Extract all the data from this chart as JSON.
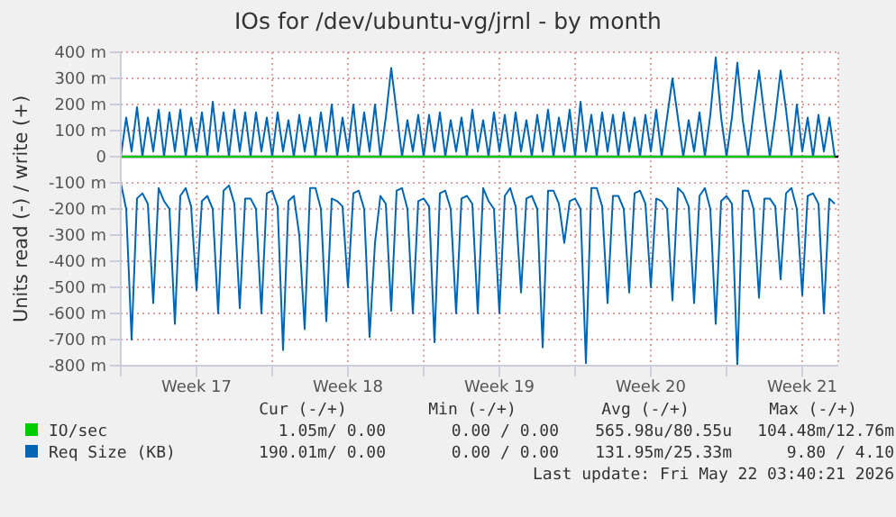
{
  "chart_data": {
    "type": "line",
    "title": "IOs for /dev/ubuntu-vg/jrnl - by month",
    "ylabel": "Units read (-) / write (+)",
    "x": [
      "2026-04-19T00:00",
      "2026-04-19T06:00",
      "2026-04-19T12:00",
      "2026-04-19T18:00",
      "2026-04-20T00:00",
      "2026-04-20T06:00",
      "2026-04-20T12:00",
      "2026-04-20T18:00",
      "2026-04-21T00:00",
      "2026-04-21T06:00",
      "2026-04-21T12:00",
      "2026-04-21T18:00",
      "2026-04-22T00:00",
      "2026-04-22T06:00",
      "2026-04-22T12:00",
      "2026-04-22T18:00",
      "2026-04-23T00:00",
      "2026-04-23T06:00",
      "2026-04-23T12:00",
      "2026-04-23T18:00",
      "2026-04-24T00:00",
      "2026-04-24T06:00",
      "2026-04-24T12:00",
      "2026-04-24T18:00",
      "2026-04-25T00:00",
      "2026-04-25T06:00",
      "2026-04-25T12:00",
      "2026-04-25T18:00",
      "2026-04-26T00:00",
      "2026-04-26T06:00",
      "2026-04-26T12:00",
      "2026-04-26T18:00",
      "2026-04-27T00:00",
      "2026-04-27T06:00",
      "2026-04-27T12:00",
      "2026-04-27T18:00",
      "2026-04-28T00:00",
      "2026-04-28T06:00",
      "2026-04-28T12:00",
      "2026-04-28T18:00",
      "2026-04-29T00:00",
      "2026-04-29T06:00",
      "2026-04-29T12:00",
      "2026-04-29T18:00",
      "2026-04-30T00:00",
      "2026-04-30T06:00",
      "2026-04-30T12:00",
      "2026-04-30T18:00",
      "2026-05-01T00:00",
      "2026-05-01T06:00",
      "2026-05-01T12:00",
      "2026-05-01T18:00",
      "2026-05-02T00:00",
      "2026-05-02T06:00",
      "2026-05-02T12:00",
      "2026-05-02T18:00",
      "2026-05-03T00:00",
      "2026-05-03T06:00",
      "2026-05-03T12:00",
      "2026-05-03T18:00",
      "2026-05-04T00:00",
      "2026-05-04T06:00",
      "2026-05-04T12:00",
      "2026-05-04T18:00",
      "2026-05-05T00:00",
      "2026-05-05T06:00",
      "2026-05-05T12:00",
      "2026-05-05T18:00",
      "2026-05-06T00:00",
      "2026-05-06T06:00",
      "2026-05-06T12:00",
      "2026-05-06T18:00",
      "2026-05-07T00:00",
      "2026-05-07T06:00",
      "2026-05-07T12:00",
      "2026-05-07T18:00",
      "2026-05-08T00:00",
      "2026-05-08T06:00",
      "2026-05-08T12:00",
      "2026-05-08T18:00",
      "2026-05-09T00:00",
      "2026-05-09T06:00",
      "2026-05-09T12:00",
      "2026-05-09T18:00",
      "2026-05-10T00:00",
      "2026-05-10T06:00",
      "2026-05-10T12:00",
      "2026-05-10T18:00",
      "2026-05-11T00:00",
      "2026-05-11T06:00",
      "2026-05-11T12:00",
      "2026-05-11T18:00",
      "2026-05-12T00:00",
      "2026-05-12T06:00",
      "2026-05-12T12:00",
      "2026-05-12T18:00",
      "2026-05-13T00:00",
      "2026-05-13T06:00",
      "2026-05-13T12:00",
      "2026-05-13T18:00",
      "2026-05-14T00:00",
      "2026-05-14T06:00",
      "2026-05-14T12:00",
      "2026-05-14T18:00",
      "2026-05-15T00:00",
      "2026-05-15T06:00",
      "2026-05-15T12:00",
      "2026-05-15T18:00",
      "2026-05-16T00:00",
      "2026-05-16T06:00",
      "2026-05-16T12:00",
      "2026-05-16T18:00",
      "2026-05-17T00:00",
      "2026-05-17T06:00",
      "2026-05-17T12:00",
      "2026-05-17T18:00",
      "2026-05-18T00:00",
      "2026-05-18T06:00",
      "2026-05-18T12:00",
      "2026-05-18T18:00",
      "2026-05-19T00:00",
      "2026-05-19T06:00",
      "2026-05-19T12:00",
      "2026-05-19T18:00",
      "2026-05-20T00:00",
      "2026-05-20T06:00",
      "2026-05-20T12:00",
      "2026-05-20T18:00",
      "2026-05-21T00:00",
      "2026-05-21T06:00",
      "2026-05-21T12:00",
      "2026-05-21T18:00",
      "2026-05-22T00:00"
    ],
    "series": [
      {
        "name": "IO/sec",
        "color": "#00cc00",
        "x": [
          "2026-04-19T00:00",
          "2026-05-22T00:00"
        ],
        "values": [
          0,
          0
        ]
      },
      {
        "name": "Req Size (KB)",
        "color": "#0066b3",
        "values": [
          -100,
          -200,
          -700,
          -160,
          -140,
          -180,
          -560,
          -120,
          -170,
          -200,
          -640,
          -150,
          -120,
          -190,
          -510,
          -170,
          -150,
          -200,
          -600,
          -130,
          -110,
          -180,
          -580,
          -160,
          -160,
          -200,
          -600,
          -140,
          -130,
          -190,
          -740,
          -170,
          -150,
          -300,
          -660,
          -120,
          -120,
          -200,
          -630,
          -160,
          -170,
          -190,
          -500,
          -140,
          -130,
          -200,
          -690,
          -330,
          -150,
          -180,
          -590,
          -130,
          -120,
          -200,
          -600,
          -170,
          -160,
          -190,
          -710,
          -140,
          -130,
          -200,
          -600,
          -160,
          -150,
          -180,
          -600,
          -120,
          -170,
          -200,
          -600,
          -150,
          -120,
          -190,
          -520,
          -160,
          -150,
          -200,
          -730,
          -130,
          -130,
          -180,
          -330,
          -170,
          -160,
          -200,
          -790,
          -120,
          -120,
          -190,
          -560,
          -150,
          -150,
          -200,
          -520,
          -140,
          -130,
          -180,
          -500,
          -160,
          -170,
          -200,
          -550,
          -120,
          -140,
          -190,
          -560,
          -150,
          -120,
          -200,
          -640,
          -170,
          -150,
          -180,
          -800,
          -130,
          -130,
          -200,
          -540,
          -160,
          -160,
          -190,
          -470,
          -140,
          -120,
          -200,
          -530,
          -150,
          -140,
          -180,
          -600,
          -160,
          -180
        ]
      },
      {
        "color": "#0066b3",
        "values": [
          0,
          150,
          20,
          190,
          0,
          150,
          20,
          180,
          0,
          170,
          20,
          180,
          0,
          150,
          20,
          170,
          0,
          210,
          20,
          170,
          0,
          180,
          20,
          170,
          0,
          170,
          20,
          150,
          0,
          170,
          20,
          140,
          0,
          160,
          20,
          150,
          0,
          170,
          20,
          200,
          0,
          150,
          20,
          200,
          0,
          170,
          20,
          200,
          0,
          150,
          340,
          170,
          0,
          140,
          20,
          160,
          0,
          160,
          20,
          170,
          0,
          140,
          20,
          150,
          0,
          180,
          20,
          140,
          0,
          170,
          20,
          160,
          0,
          170,
          20,
          140,
          0,
          160,
          20,
          180,
          0,
          150,
          20,
          180,
          0,
          210,
          20,
          160,
          0,
          170,
          20,
          160,
          0,
          170,
          20,
          150,
          0,
          160,
          20,
          180,
          0,
          150,
          300,
          150,
          0,
          140,
          20,
          170,
          0,
          160,
          380,
          150,
          0,
          150,
          360,
          140,
          0,
          170,
          330,
          160,
          0,
          150,
          330,
          180,
          0,
          200,
          20,
          150,
          0,
          160,
          20,
          150,
          0
        ]
      }
    ],
    "xlim": [
      "2026-04-19T00:00",
      "2026-05-22T04:00"
    ],
    "xticks": [
      {
        "value": "2026-04-19T00:00",
        "label": null
      },
      {
        "value": "2026-04-22T12:00",
        "label": "Week 17"
      },
      {
        "value": "2026-04-26T00:00",
        "label": null
      },
      {
        "value": "2026-04-29T12:00",
        "label": "Week 18"
      },
      {
        "value": "2026-05-03T00:00",
        "label": null
      },
      {
        "value": "2026-05-06T12:00",
        "label": "Week 19"
      },
      {
        "value": "2026-05-10T00:00",
        "label": null
      },
      {
        "value": "2026-05-13T12:00",
        "label": "Week 20"
      },
      {
        "value": "2026-05-17T00:00",
        "label": null
      },
      {
        "value": "2026-05-20T12:00",
        "label": "Week 21"
      }
    ],
    "ylim": [
      -800,
      400
    ],
    "yticks": [
      {
        "value": -800,
        "label": "-800 m"
      },
      {
        "value": -700,
        "label": "-700 m"
      },
      {
        "value": -600,
        "label": "-600 m"
      },
      {
        "value": -500,
        "label": "-500 m"
      },
      {
        "value": -400,
        "label": "-400 m"
      },
      {
        "value": -300,
        "label": "-300 m"
      },
      {
        "value": -200,
        "label": "-200 m"
      },
      {
        "value": -100,
        "label": "-100 m"
      },
      0,
      {
        "value": 100,
        "label": "100 m"
      },
      {
        "value": 200,
        "label": "200 m"
      },
      {
        "value": 300,
        "label": "300 m"
      },
      {
        "value": 400,
        "label": "400 m"
      }
    ],
    "ref_lines": [
      {
        "axis": "y",
        "value": 0,
        "color": "#000000"
      }
    ],
    "grid": true,
    "legend": "bottom",
    "marker": "none",
    "line_style": "solid",
    "annotations": [
      "Cur (-/+)",
      "Min (-/+)",
      "Avg (-/+)",
      "Max (-/+)",
      "1.05m/ 0.00",
      "0.00 / 0.00",
      "565.98u/80.55u",
      "104.48m/12.76m",
      "190.01m/ 0.00",
      "0.00 / 0.00",
      "131.95m/25.33m",
      "9.80 / 4.10",
      "Last update: Fri May 22 03:40:21 2026"
    ]
  }
}
